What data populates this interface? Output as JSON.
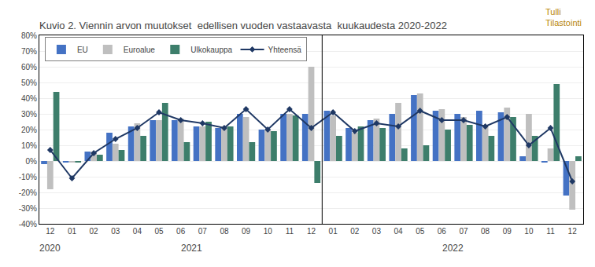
{
  "chart_data": {
    "type": "bar",
    "title": "Kuvio 2. Viennin arvon muutokset  edellisen vuoden vastaavasta  kuukaudesta 2020-2022",
    "categories": [
      "12",
      "01",
      "02",
      "03",
      "04",
      "05",
      "06",
      "07",
      "08",
      "09",
      "10",
      "11",
      "12",
      "01",
      "02",
      "03",
      "04",
      "05",
      "06",
      "07",
      "08",
      "09",
      "10",
      "11",
      "12"
    ],
    "series": [
      {
        "name": "EU",
        "type": "bar",
        "color": "#4472C4",
        "values": [
          -2,
          -1,
          6,
          18,
          22,
          26,
          26,
          22,
          21,
          30,
          20,
          30,
          30,
          32,
          21,
          26,
          30,
          42,
          32,
          30,
          32,
          31,
          3,
          -1,
          -22
        ]
      },
      {
        "name": "Euroalue",
        "type": "bar",
        "color": "#BFBFBF",
        "values": [
          -18,
          -1,
          6,
          11,
          24,
          26,
          27,
          22,
          22,
          28,
          20,
          30,
          60,
          29,
          18,
          27,
          37,
          43,
          33,
          28,
          23,
          34,
          30,
          8,
          -31
        ]
      },
      {
        "name": "Ulkokauppa",
        "type": "bar",
        "color": "#3D7E6B",
        "values": [
          44,
          -1,
          4,
          7,
          16,
          37,
          12,
          25,
          22,
          12,
          19,
          29,
          -14,
          16,
          22,
          21,
          8,
          10,
          20,
          23,
          16,
          28,
          16,
          49,
          3
        ]
      },
      {
        "name": "Yhteensä",
        "type": "line",
        "marker": "diamond",
        "color": "#1F3864",
        "values": [
          7,
          -11,
          5,
          14,
          21,
          31,
          26,
          24,
          21,
          33,
          20,
          33,
          21,
          31,
          19,
          24,
          22,
          32,
          26,
          26,
          22,
          28,
          10,
          21,
          -13
        ]
      }
    ],
    "ylim": [
      -40,
      80
    ],
    "yticks": [
      {
        "value": -40,
        "label": "-40%"
      },
      {
        "value": -30,
        "label": "-30%"
      },
      {
        "value": -20,
        "label": "-20%"
      },
      {
        "value": -10,
        "label": "-10%"
      },
      {
        "value": 0,
        "label": "0%"
      },
      {
        "value": 10,
        "label": "10%"
      },
      {
        "value": 20,
        "label": "20%"
      },
      {
        "value": 30,
        "label": "30%"
      },
      {
        "value": 40,
        "label": "40%"
      },
      {
        "value": 50,
        "label": "50%"
      },
      {
        "value": 60,
        "label": "60%"
      },
      {
        "value": 70,
        "label": "70%"
      },
      {
        "value": 80,
        "label": "80%"
      }
    ],
    "grid": true,
    "legend": "upper left",
    "annotations": [
      {
        "text": "2020",
        "first": 0,
        "last": 0
      },
      {
        "text": "2021",
        "first": 1,
        "last": 12
      },
      {
        "text": "2022",
        "first": 13,
        "last": 24
      },
      {
        "text": "Tulli\nTilastointi",
        "color": "#B8860B"
      }
    ]
  }
}
